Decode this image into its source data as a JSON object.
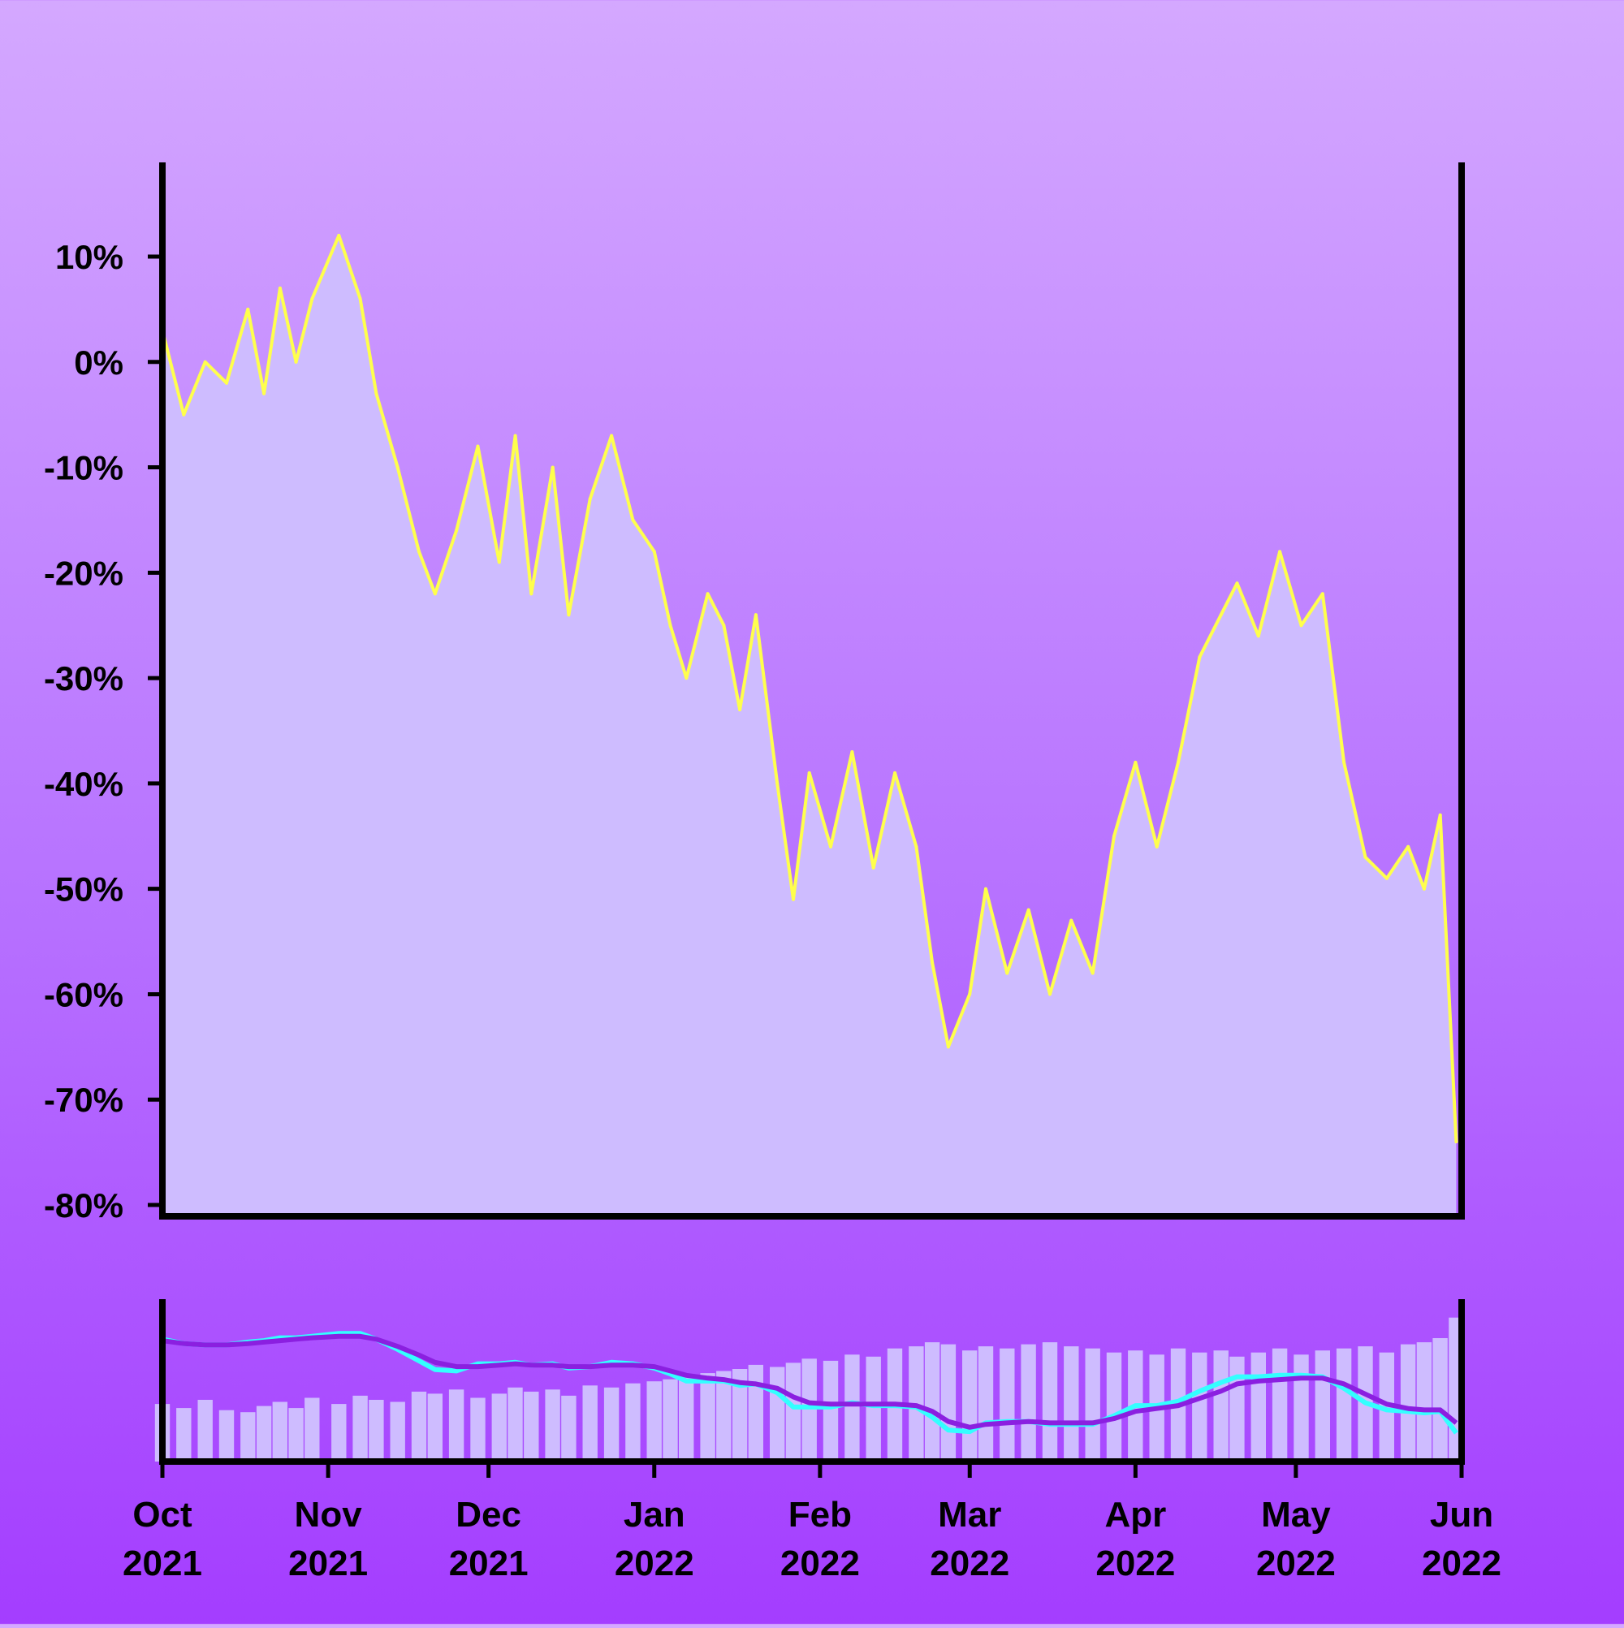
{
  "chart_data": {
    "type": "area",
    "title": "",
    "xlabel": "",
    "ylabel": "",
    "ylim": [
      -80,
      18
    ],
    "y_ticks": [
      "10%",
      "0%",
      "-10%",
      "-20%",
      "-30%",
      "-40%",
      "-50%",
      "-60%",
      "-70%",
      "-80%"
    ],
    "y_tick_values": [
      10,
      0,
      -10,
      -20,
      -30,
      -40,
      -50,
      -60,
      -70,
      -80
    ],
    "x_ticks": [
      {
        "month": "Oct",
        "year": "2021",
        "date": "2021-10-01"
      },
      {
        "month": "Nov",
        "year": "2021",
        "date": "2021-11-01"
      },
      {
        "month": "Dec",
        "year": "2021",
        "date": "2021-12-01"
      },
      {
        "month": "Jan",
        "year": "2022",
        "date": "2022-01-01"
      },
      {
        "month": "Feb",
        "year": "2022",
        "date": "2022-02-01"
      },
      {
        "month": "Mar",
        "year": "2022",
        "date": "2022-03-01"
      },
      {
        "month": "Apr",
        "year": "2022",
        "date": "2022-04-01"
      },
      {
        "month": "May",
        "year": "2022",
        "date": "2022-05-01"
      },
      {
        "month": "Jun",
        "year": "2022",
        "date": "2022-06-01"
      }
    ],
    "xlim": [
      "2021-10-01",
      "2022-06-01"
    ],
    "grid": false,
    "legend": "none",
    "series": [
      {
        "dates": [
          "2021-10-01",
          "2021-10-05",
          "2021-10-09",
          "2021-10-13",
          "2021-10-17",
          "2021-10-20",
          "2021-10-23",
          "2021-10-26",
          "2021-10-29",
          "2021-11-03",
          "2021-11-07",
          "2021-11-10",
          "2021-11-14",
          "2021-11-18",
          "2021-11-21",
          "2021-11-25",
          "2021-11-29",
          "2021-12-03",
          "2021-12-06",
          "2021-12-09",
          "2021-12-13",
          "2021-12-16",
          "2021-12-20",
          "2021-12-24",
          "2021-12-28",
          "2022-01-01",
          "2022-01-04",
          "2022-01-07",
          "2022-01-11",
          "2022-01-14",
          "2022-01-17",
          "2022-01-20",
          "2022-01-24",
          "2022-01-27",
          "2022-01-30",
          "2022-02-03",
          "2022-02-07",
          "2022-02-11",
          "2022-02-15",
          "2022-02-19",
          "2022-02-22",
          "2022-02-25",
          "2022-03-01",
          "2022-03-04",
          "2022-03-08",
          "2022-03-12",
          "2022-03-16",
          "2022-03-20",
          "2022-03-24",
          "2022-03-28",
          "2022-04-01",
          "2022-04-05",
          "2022-04-09",
          "2022-04-13",
          "2022-04-17",
          "2022-04-20",
          "2022-04-24",
          "2022-04-28",
          "2022-05-02",
          "2022-05-06",
          "2022-05-10",
          "2022-05-14",
          "2022-05-18",
          "2022-05-22",
          "2022-05-25",
          "2022-05-28",
          "2022-05-31"
        ],
        "values": [
          3,
          -5,
          0,
          -2,
          5,
          -3,
          7,
          0,
          6,
          12,
          6,
          -3,
          -10,
          -18,
          -22,
          -16,
          -8,
          -19,
          -7,
          -22,
          -10,
          -24,
          -13,
          -7,
          -15,
          -18,
          -25,
          -30,
          -22,
          -25,
          -33,
          -24,
          -40,
          -51,
          -39,
          -46,
          -37,
          -48,
          -39,
          -46,
          -57,
          -65,
          -60,
          -50,
          -58,
          -52,
          -60,
          -53,
          -58,
          -45,
          -38,
          -46,
          -38,
          -28,
          -24,
          -21,
          -26,
          -18,
          -25,
          -22,
          -38,
          -47,
          -49,
          -46,
          -50,
          -43,
          -74
        ],
        "volume": [
          28,
          26,
          30,
          25,
          24,
          27,
          29,
          26,
          31,
          28,
          32,
          30,
          29,
          34,
          33,
          35,
          31,
          33,
          36,
          34,
          35,
          32,
          37,
          36,
          38,
          39,
          40,
          41,
          43,
          44,
          45,
          47,
          46,
          48,
          50,
          49,
          52,
          51,
          55,
          56,
          58,
          57,
          54,
          56,
          55,
          57,
          58,
          56,
          55,
          53,
          54,
          52,
          55,
          53,
          54,
          51,
          53,
          55,
          52,
          54,
          55,
          56,
          53,
          57,
          58,
          60,
          70
        ],
        "ma_fast": [
          3,
          0,
          -1,
          -1,
          1,
          2,
          4,
          4,
          5,
          7,
          7,
          3,
          -4,
          -12,
          -18,
          -19,
          -14,
          -14,
          -13,
          -15,
          -14,
          -17,
          -16,
          -13,
          -14,
          -17,
          -21,
          -26,
          -26,
          -26,
          -29,
          -28,
          -34,
          -44,
          -44,
          -44,
          -41,
          -43,
          -43,
          -44,
          -51,
          -60,
          -61,
          -55,
          -54,
          -54,
          -56,
          -56,
          -56,
          -50,
          -43,
          -43,
          -40,
          -33,
          -27,
          -23,
          -23,
          -22,
          -22,
          -23,
          -31,
          -41,
          -46,
          -47,
          -48,
          -47,
          -62
        ],
        "ma_slow": [
          2,
          0,
          -1,
          -1,
          0,
          1,
          2,
          3,
          4,
          5,
          5,
          3,
          -2,
          -8,
          -13,
          -16,
          -16,
          -15,
          -14,
          -15,
          -15,
          -16,
          -16,
          -15,
          -15,
          -16,
          -19,
          -22,
          -24,
          -25,
          -27,
          -28,
          -31,
          -37,
          -41,
          -42,
          -42,
          -42,
          -42,
          -43,
          -47,
          -54,
          -58,
          -56,
          -55,
          -54,
          -55,
          -55,
          -55,
          -52,
          -47,
          -45,
          -43,
          -38,
          -33,
          -28,
          -26,
          -25,
          -24,
          -24,
          -28,
          -35,
          -42,
          -45,
          -46,
          -46,
          -55
        ]
      }
    ]
  }
}
